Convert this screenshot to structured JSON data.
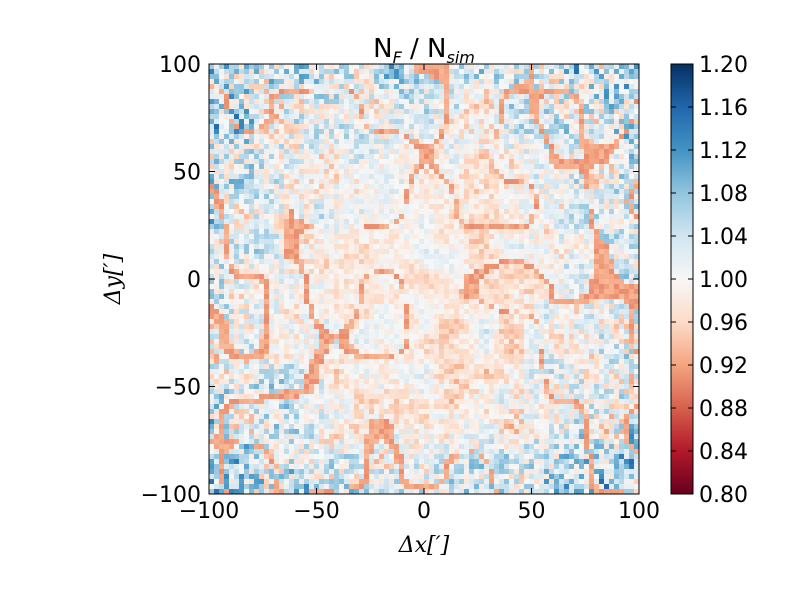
{
  "chart_data": {
    "type": "heatmap",
    "title": "N",
    "title_sub1": "F",
    "title_sep": " / N",
    "title_sub2": "sim",
    "xlabel": "Δx[′]",
    "ylabel": "Δy[′]",
    "xlim": [
      -100,
      100
    ],
    "ylim": [
      -100,
      100
    ],
    "xticks": [
      -100,
      -50,
      0,
      50,
      100
    ],
    "yticks": [
      -100,
      -50,
      0,
      50,
      100
    ],
    "xtick_labels": [
      "−100",
      "−50",
      "0",
      "50",
      "100"
    ],
    "ytick_labels": [
      "−100",
      "−50",
      "0",
      "50",
      "100"
    ],
    "colormap": "RdBu",
    "color_low": "#67001f",
    "color_mid": "#f7f7f7",
    "color_high": "#053061",
    "colorbar_range": [
      0.8,
      1.2
    ],
    "colorbar_ticks": [
      1.2,
      1.16,
      1.12,
      1.08,
      1.04,
      1.0,
      0.96,
      0.92,
      0.88,
      0.84,
      0.8
    ],
    "colorbar_tick_labels": [
      "1.20",
      "1.16",
      "1.12",
      "1.08",
      "1.04",
      "1.00",
      "0.96",
      "0.92",
      "0.88",
      "0.84",
      "0.80"
    ],
    "description_values": {
      "center_mean": 0.98,
      "edge_mean": 1.04,
      "filament_value": 0.92
    }
  }
}
